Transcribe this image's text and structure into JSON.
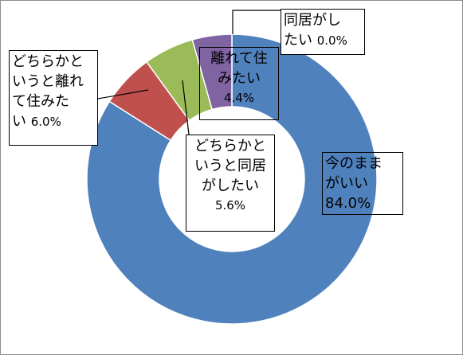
{
  "chart_data": {
    "type": "pie",
    "variant": "donut",
    "title": "",
    "start_angle_deg": 0,
    "direction": "clockwise",
    "slices": [
      {
        "label_lines": [
          "今のまま",
          "がいい"
        ],
        "value": 84.0,
        "value_text": "84.0%",
        "color": "#4F81BD"
      },
      {
        "label_lines": [
          "どちらかと",
          "いうと離れ",
          "て住みた",
          "い"
        ],
        "value": 6.0,
        "value_text": "6.0%",
        "color": "#C0504D"
      },
      {
        "label_lines": [
          "どちらかと",
          "いうと同居",
          "がしたい"
        ],
        "value": 5.6,
        "value_text": "5.6%",
        "color": "#9BBB59"
      },
      {
        "label_lines": [
          "離れて住",
          "みたい"
        ],
        "value": 4.4,
        "value_text": "4.4%",
        "color": "#8064A2"
      },
      {
        "label_lines": [
          "同居がし",
          "たい"
        ],
        "value": 0.0,
        "value_text": "0.0%",
        "color": "#4BACC6"
      }
    ]
  }
}
